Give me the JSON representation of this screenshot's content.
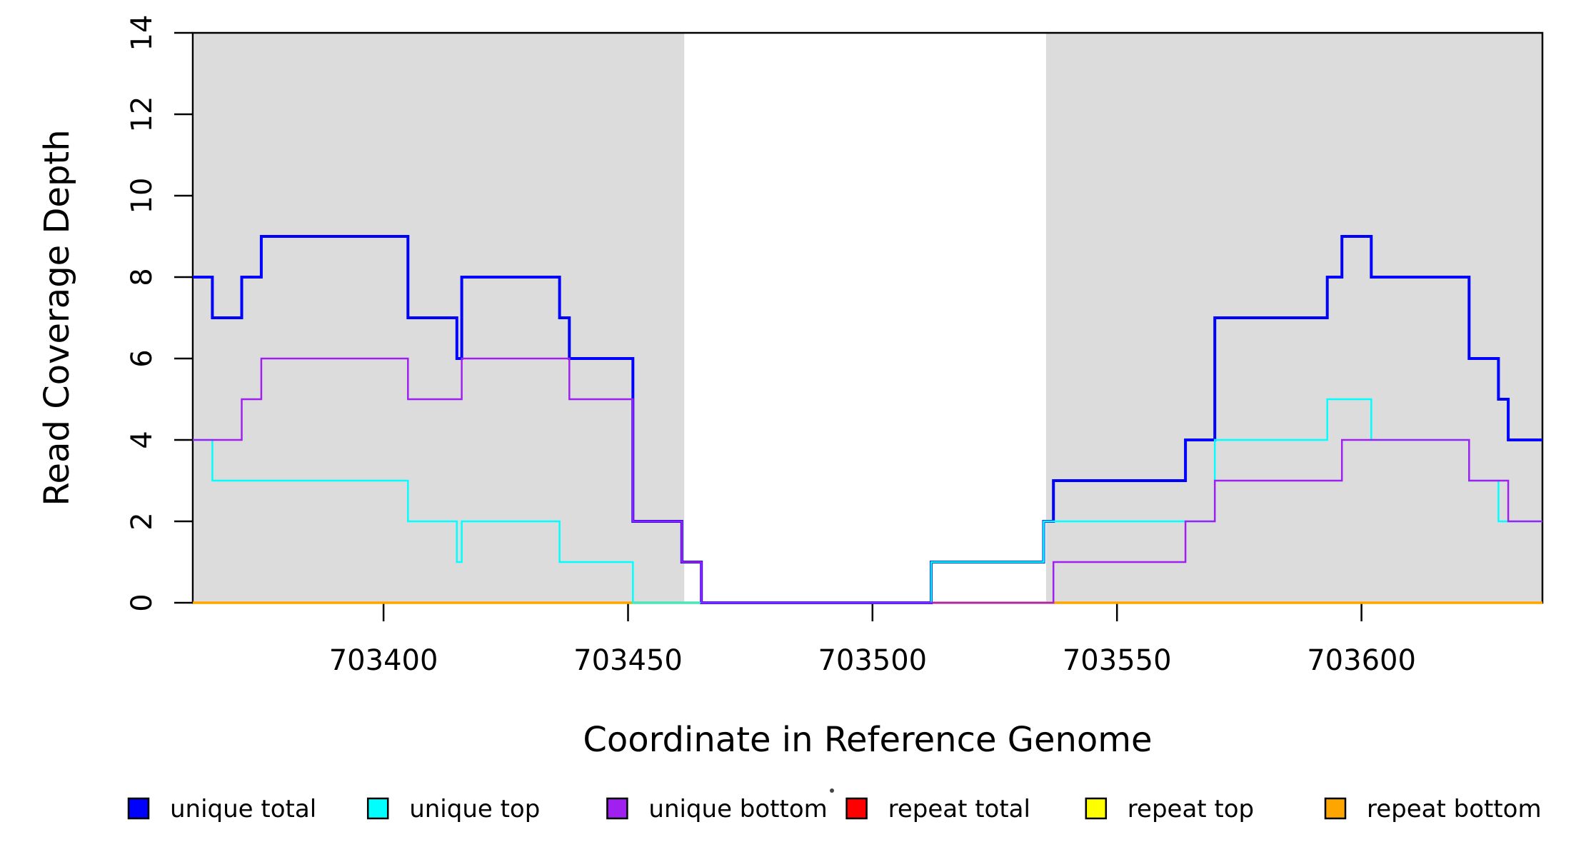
{
  "figure": {
    "background": "#ffffff",
    "plot_background": "#ffffff",
    "shaded_region_color": "#DCDCDC",
    "axis_color": "#000000"
  },
  "chart_data": {
    "type": "line",
    "subtype": "step-hv",
    "title": "",
    "xlabel": "Coordinate in Reference Genome",
    "ylabel": "Read Coverage Depth",
    "xlim": [
      703361,
      703637
    ],
    "ylim": [
      0,
      14
    ],
    "x_ticks": [
      703400,
      703450,
      703500,
      703550,
      703600
    ],
    "x_tick_labels": [
      "703400",
      "703450",
      "703500",
      "703550",
      "703600"
    ],
    "y_ticks": [
      0,
      2,
      4,
      6,
      8,
      10,
      12,
      14
    ],
    "y_tick_labels": [
      "0",
      "2",
      "4",
      "6",
      "8",
      "10",
      "12",
      "14"
    ],
    "grid": false,
    "legend_position": "bottom",
    "x_end": 703637,
    "shaded_regions": [
      {
        "x0": 703361.3,
        "x1": 703461.5,
        "color": "#DCDCDC"
      },
      {
        "x0": 703535.5,
        "x1": 703637.0,
        "color": "#DCDCDC"
      }
    ],
    "series": [
      {
        "name": "repeat total",
        "color": "#FF0000",
        "lwd": 2.5,
        "steps": [
          [
            703361,
            0
          ]
        ]
      },
      {
        "name": "repeat top",
        "color": "#FFFF00",
        "lwd": 2.5,
        "steps": [
          [
            703361,
            0
          ]
        ]
      },
      {
        "name": "repeat bottom",
        "color": "#FFA500",
        "lwd": 3.5,
        "steps": [
          [
            703361,
            0
          ]
        ]
      },
      {
        "name": "unique total",
        "color": "#0000FF",
        "lwd": 4,
        "steps": [
          [
            703361,
            8
          ],
          [
            703365,
            7
          ],
          [
            703371,
            8
          ],
          [
            703375,
            9
          ],
          [
            703405,
            7
          ],
          [
            703415,
            6
          ],
          [
            703416,
            8
          ],
          [
            703436,
            7
          ],
          [
            703438,
            6
          ],
          [
            703451,
            2
          ],
          [
            703461,
            1
          ],
          [
            703465,
            0
          ],
          [
            703512,
            1
          ],
          [
            703535,
            2
          ],
          [
            703537,
            3
          ],
          [
            703564,
            4
          ],
          [
            703570,
            7
          ],
          [
            703593,
            8
          ],
          [
            703596,
            9
          ],
          [
            703602,
            8
          ],
          [
            703622,
            6
          ],
          [
            703628,
            5
          ],
          [
            703630,
            4
          ]
        ]
      },
      {
        "name": "unique top",
        "color": "#00FFFF",
        "lwd": 2.5,
        "steps": [
          [
            703361,
            4
          ],
          [
            703365,
            3
          ],
          [
            703405,
            2
          ],
          [
            703415,
            1
          ],
          [
            703416,
            2
          ],
          [
            703436,
            1
          ],
          [
            703451,
            0
          ],
          [
            703512,
            1
          ],
          [
            703535,
            2
          ],
          [
            703570,
            4
          ],
          [
            703593,
            5
          ],
          [
            703602,
            4
          ],
          [
            703622,
            3
          ],
          [
            703628,
            2
          ]
        ]
      },
      {
        "name": "unique bottom",
        "color": "#A020F0",
        "lwd": 2.5,
        "steps": [
          [
            703361,
            4
          ],
          [
            703371,
            5
          ],
          [
            703375,
            6
          ],
          [
            703405,
            5
          ],
          [
            703416,
            6
          ],
          [
            703438,
            5
          ],
          [
            703451,
            2
          ],
          [
            703461,
            1
          ],
          [
            703465,
            0
          ],
          [
            703537,
            1
          ],
          [
            703564,
            2
          ],
          [
            703570,
            3
          ],
          [
            703596,
            4
          ],
          [
            703622,
            3
          ],
          [
            703630,
            2
          ]
        ]
      }
    ],
    "legend": [
      {
        "label": "unique total",
        "color": "#0000FF"
      },
      {
        "label": "unique top",
        "color": "#00FFFF"
      },
      {
        "label": "unique bottom",
        "color": "#A020F0"
      },
      {
        "label": "repeat total",
        "color": "#FF0000"
      },
      {
        "label": "repeat top",
        "color": "#FFFF00"
      },
      {
        "label": "repeat bottom",
        "color": "#FFA500"
      }
    ],
    "artifact_dot": {
      "x": 1165,
      "y": 1107
    }
  }
}
